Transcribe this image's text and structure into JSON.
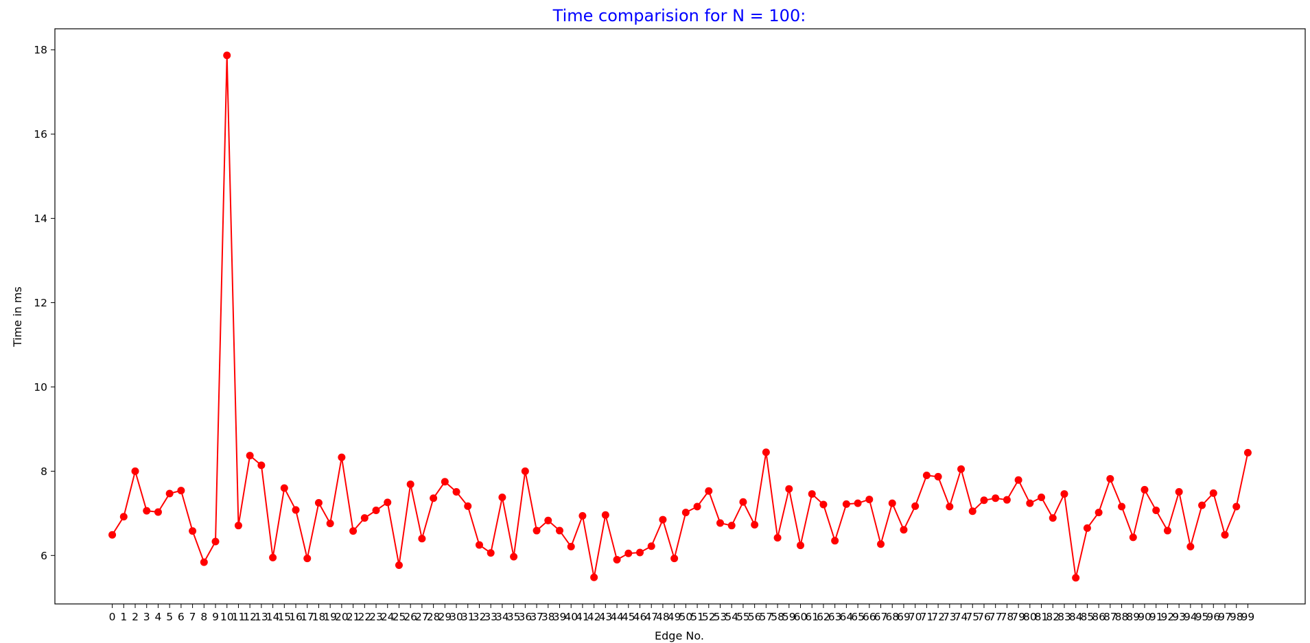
{
  "chart_data": {
    "type": "line",
    "title": "Time comparision for N = 100:",
    "title_color": "#0000ff",
    "xlabel": "Edge No.",
    "ylabel": "Time in ms",
    "series_color": "#ff0000",
    "grid": false,
    "legend": "none",
    "xlim": [
      -5,
      104
    ],
    "ylim": [
      4.85,
      18.5
    ],
    "y_ticks": [
      6,
      8,
      10,
      12,
      14,
      16,
      18
    ],
    "x": [
      0,
      1,
      2,
      3,
      4,
      5,
      6,
      7,
      8,
      9,
      10,
      11,
      12,
      13,
      14,
      15,
      16,
      17,
      18,
      19,
      20,
      21,
      22,
      23,
      24,
      25,
      26,
      27,
      28,
      29,
      30,
      31,
      32,
      33,
      34,
      35,
      36,
      37,
      38,
      39,
      40,
      41,
      42,
      43,
      44,
      45,
      46,
      47,
      48,
      49,
      50,
      51,
      52,
      53,
      54,
      55,
      56,
      57,
      58,
      59,
      60,
      61,
      62,
      63,
      64,
      65,
      66,
      67,
      68,
      69,
      70,
      71,
      72,
      73,
      74,
      75,
      76,
      77,
      78,
      79,
      80,
      81,
      82,
      83,
      84,
      85,
      86,
      87,
      88,
      89,
      90,
      91,
      92,
      93,
      94,
      95,
      96,
      97,
      98,
      99
    ],
    "x_tick_labels": [
      "0",
      "1",
      "2",
      "3",
      "4",
      "5",
      "6",
      "7",
      "8",
      "9",
      "10",
      "11",
      "12",
      "13",
      "14",
      "15",
      "16",
      "17",
      "18",
      "19",
      "20",
      "21",
      "22",
      "23",
      "24",
      "25",
      "26",
      "27",
      "28",
      "29",
      "30",
      "31",
      "32",
      "33",
      "34",
      "35",
      "36",
      "37",
      "38",
      "39",
      "40",
      "41",
      "42",
      "43",
      "44",
      "45",
      "46",
      "47",
      "48",
      "49",
      "50",
      "51",
      "52",
      "53",
      "54",
      "55",
      "56",
      "57",
      "58",
      "59",
      "60",
      "61",
      "62",
      "63",
      "64",
      "65",
      "66",
      "67",
      "68",
      "69",
      "70",
      "71",
      "72",
      "73",
      "74",
      "75",
      "76",
      "77",
      "78",
      "79",
      "80",
      "81",
      "82",
      "83",
      "84",
      "85",
      "86",
      "87",
      "88",
      "89",
      "90",
      "91",
      "92",
      "93",
      "94",
      "95",
      "96",
      "97",
      "98",
      "99"
    ],
    "values": [
      6.49,
      6.92,
      8.0,
      7.06,
      7.03,
      7.47,
      7.54,
      6.58,
      5.84,
      6.33,
      17.87,
      6.71,
      8.37,
      8.14,
      5.95,
      7.6,
      7.08,
      5.93,
      7.25,
      6.76,
      8.33,
      6.58,
      6.89,
      7.07,
      7.26,
      5.77,
      7.69,
      6.4,
      7.36,
      7.75,
      7.51,
      7.17,
      6.25,
      6.06,
      7.38,
      5.97,
      8.0,
      6.59,
      6.83,
      6.59,
      6.21,
      6.94,
      5.48,
      6.96,
      5.9,
      6.05,
      6.07,
      6.22,
      6.85,
      5.93,
      7.02,
      7.16,
      7.53,
      6.77,
      6.71,
      7.27,
      6.73,
      8.45,
      6.42,
      7.58,
      6.24,
      7.46,
      7.21,
      6.35,
      7.22,
      7.24,
      7.33,
      6.27,
      7.24,
      6.61,
      7.17,
      7.9,
      7.87,
      7.16,
      8.05,
      7.05,
      7.31,
      7.36,
      7.32,
      7.79,
      7.24,
      7.38,
      6.89,
      7.46,
      5.47,
      6.65,
      7.02,
      7.82,
      7.16,
      6.43,
      7.56,
      7.07,
      6.59,
      7.51,
      6.21,
      7.19,
      7.48,
      6.49,
      7.16,
      8.44
    ]
  }
}
